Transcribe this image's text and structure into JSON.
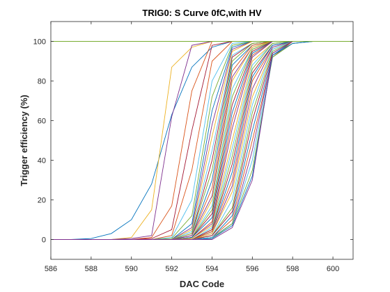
{
  "chart_data": {
    "type": "line",
    "title": "TRIG0: S Curve 0fC,with HV",
    "xlabel": "DAC Code",
    "ylabel": "Trigger efficiency (%)",
    "xlim": [
      586,
      601
    ],
    "ylim": [
      -10,
      110
    ],
    "xticks": [
      586,
      588,
      590,
      592,
      594,
      596,
      598,
      600
    ],
    "yticks": [
      0,
      20,
      40,
      60,
      80,
      100
    ],
    "grid": false,
    "legend": "none",
    "x": [
      586,
      587,
      588,
      589,
      590,
      591,
      592,
      593,
      594,
      595,
      596,
      597,
      598,
      599,
      600,
      601
    ],
    "series": [
      {
        "color": "#0072BD",
        "values": [
          0,
          0,
          0.5,
          3,
          10,
          28,
          63,
          87,
          97,
          100,
          100,
          100,
          100,
          100,
          100,
          100
        ]
      },
      {
        "color": "#EDB120",
        "values": [
          0,
          0,
          0,
          0,
          1,
          15,
          87,
          97,
          100,
          100,
          100,
          100,
          100,
          100,
          100,
          100
        ]
      },
      {
        "color": "#7E2F8E",
        "values": [
          0,
          0,
          0,
          0,
          0.5,
          2,
          62,
          98,
          100,
          100,
          100,
          100,
          100,
          100,
          100,
          100
        ]
      },
      {
        "color": "#D95319",
        "values": [
          0,
          0,
          0,
          0,
          0,
          1,
          17,
          75,
          100,
          100,
          100,
          100,
          100,
          100,
          100,
          100
        ]
      },
      {
        "color": "#A2142F",
        "values": [
          0,
          0,
          0,
          0,
          0,
          0.5,
          5,
          55,
          98,
          100,
          100,
          100,
          100,
          100,
          100,
          100
        ]
      },
      {
        "color": "#D95319",
        "values": [
          0,
          0,
          0,
          0,
          0,
          0,
          2,
          35,
          90,
          100,
          100,
          100,
          100,
          100,
          100,
          100
        ]
      },
      {
        "color": "#4DBEEE",
        "values": [
          0,
          0,
          0,
          0,
          0,
          0,
          1,
          20,
          80,
          99,
          100,
          100,
          100,
          100,
          100,
          100
        ]
      },
      {
        "color": "#77AC30",
        "values": [
          0,
          0,
          0,
          0,
          0,
          0,
          0.5,
          12,
          72,
          98,
          100,
          100,
          100,
          100,
          100,
          100
        ]
      },
      {
        "color": "#0072BD",
        "values": [
          0,
          0,
          0,
          0,
          0,
          0,
          0,
          8,
          65,
          97,
          100,
          100,
          100,
          100,
          100,
          100
        ]
      },
      {
        "color": "#7E2F8E",
        "values": [
          0,
          0,
          0,
          0,
          0,
          0,
          0,
          6,
          58,
          96,
          100,
          100,
          100,
          100,
          100,
          100
        ]
      },
      {
        "color": "#EDB120",
        "values": [
          0,
          0,
          0,
          0,
          0,
          0,
          0,
          5,
          52,
          95,
          100,
          100,
          100,
          100,
          100,
          100
        ]
      },
      {
        "color": "#4DBEEE",
        "values": [
          0,
          0,
          0,
          0,
          0,
          0,
          0,
          4,
          45,
          93,
          99,
          100,
          100,
          100,
          100,
          100
        ]
      },
      {
        "color": "#A2142F",
        "values": [
          0,
          0,
          0,
          0,
          0,
          0,
          0,
          3,
          40,
          92,
          99,
          100,
          100,
          100,
          100,
          100
        ]
      },
      {
        "color": "#77AC30",
        "values": [
          0,
          0,
          0,
          0,
          0,
          0,
          0,
          3,
          35,
          90,
          99,
          100,
          100,
          100,
          100,
          100
        ]
      },
      {
        "color": "#0072BD",
        "values": [
          0,
          0,
          0,
          0,
          0,
          0,
          0,
          2,
          30,
          88,
          98,
          100,
          100,
          100,
          100,
          100
        ]
      },
      {
        "color": "#D95319",
        "values": [
          0,
          0,
          0,
          0,
          0,
          0,
          0,
          2,
          26,
          85,
          98,
          100,
          100,
          100,
          100,
          100
        ]
      },
      {
        "color": "#7E2F8E",
        "values": [
          0,
          0,
          0,
          0,
          0,
          0,
          0,
          2,
          22,
          82,
          97,
          100,
          100,
          100,
          100,
          100
        ]
      },
      {
        "color": "#EDB120",
        "values": [
          0,
          0,
          0,
          0,
          0,
          0,
          0,
          1,
          20,
          80,
          97,
          100,
          100,
          100,
          100,
          100
        ]
      },
      {
        "color": "#4DBEEE",
        "values": [
          0,
          0,
          0,
          0,
          0,
          0,
          0,
          1,
          17,
          76,
          96,
          100,
          100,
          100,
          100,
          100
        ]
      },
      {
        "color": "#77AC30",
        "values": [
          0,
          0,
          0,
          0,
          0,
          0,
          0,
          1,
          15,
          72,
          96,
          100,
          100,
          100,
          100,
          100
        ]
      },
      {
        "color": "#A2142F",
        "values": [
          0,
          0,
          0,
          0,
          0,
          0,
          0,
          1,
          13,
          68,
          95,
          100,
          100,
          100,
          100,
          100
        ]
      },
      {
        "color": "#0072BD",
        "values": [
          0,
          0,
          0,
          0,
          0,
          0,
          0,
          1,
          11,
          64,
          94,
          100,
          100,
          100,
          100,
          100
        ]
      },
      {
        "color": "#D95319",
        "values": [
          0,
          0,
          0,
          0,
          0,
          0,
          0,
          0.5,
          9,
          60,
          93,
          100,
          100,
          100,
          100,
          100
        ]
      },
      {
        "color": "#7E2F8E",
        "values": [
          0,
          0,
          0,
          0,
          0,
          0,
          0,
          0.5,
          8,
          56,
          92,
          100,
          100,
          100,
          100,
          100
        ]
      },
      {
        "color": "#EDB120",
        "values": [
          0,
          0,
          0,
          0,
          0,
          0,
          0,
          0.5,
          7,
          50,
          90,
          99,
          100,
          100,
          100,
          100
        ]
      },
      {
        "color": "#4DBEEE",
        "values": [
          0,
          0,
          0,
          0,
          0,
          0,
          0,
          0,
          6,
          46,
          88,
          99,
          100,
          100,
          100,
          100
        ]
      },
      {
        "color": "#77AC30",
        "values": [
          0,
          0,
          0,
          0,
          0,
          0,
          0,
          0,
          5,
          42,
          86,
          99,
          100,
          100,
          100,
          100
        ]
      },
      {
        "color": "#A2142F",
        "values": [
          0,
          0,
          0,
          0,
          0,
          0,
          0,
          0,
          5,
          38,
          84,
          98,
          100,
          100,
          100,
          100
        ]
      },
      {
        "color": "#0072BD",
        "values": [
          0,
          0,
          0,
          0,
          0,
          0,
          0,
          0,
          4,
          34,
          82,
          98,
          100,
          100,
          100,
          100
        ]
      },
      {
        "color": "#D95319",
        "values": [
          0,
          0,
          0,
          0,
          0,
          0,
          0,
          0,
          4,
          30,
          80,
          97,
          100,
          100,
          100,
          100
        ]
      },
      {
        "color": "#7E2F8E",
        "values": [
          0,
          0,
          0,
          0,
          0,
          0,
          0,
          0,
          3,
          27,
          76,
          97,
          100,
          100,
          100,
          100
        ]
      },
      {
        "color": "#EDB120",
        "values": [
          0,
          0,
          0,
          0,
          0,
          0,
          0,
          0,
          3,
          24,
          72,
          96,
          100,
          100,
          100,
          100
        ]
      },
      {
        "color": "#4DBEEE",
        "values": [
          0,
          0,
          0,
          0,
          0,
          0,
          0,
          0,
          2,
          20,
          68,
          96,
          100,
          100,
          100,
          100
        ]
      },
      {
        "color": "#77AC30",
        "values": [
          0,
          0,
          0,
          0,
          0,
          0,
          0,
          0,
          2,
          16,
          64,
          95,
          100,
          100,
          100,
          100
        ]
      },
      {
        "color": "#A2142F",
        "values": [
          0,
          0,
          0,
          0,
          0,
          0,
          0,
          0,
          2,
          14,
          60,
          94,
          100,
          100,
          100,
          100
        ]
      },
      {
        "color": "#0072BD",
        "values": [
          0,
          0,
          0,
          0,
          0,
          0,
          0,
          0,
          1,
          12,
          55,
          93,
          100,
          100,
          100,
          100
        ]
      },
      {
        "color": "#D95319",
        "values": [
          0,
          0,
          0,
          0,
          0,
          0,
          0,
          0,
          1,
          10,
          50,
          92,
          100,
          100,
          100,
          100
        ]
      },
      {
        "color": "#7E2F8E",
        "values": [
          0,
          0,
          0,
          0,
          0,
          0,
          0,
          0,
          1,
          8,
          45,
          93,
          99,
          100,
          100,
          100
        ]
      },
      {
        "color": "#4DBEEE",
        "values": [
          0,
          0,
          0,
          0,
          0,
          0,
          0,
          0,
          1,
          8,
          40,
          92,
          99,
          100,
          100,
          100
        ]
      },
      {
        "color": "#77AC30",
        "values": [
          0,
          0,
          0,
          0,
          0,
          0,
          0,
          0,
          0.5,
          8,
          35,
          92,
          99,
          100,
          100,
          100
        ]
      },
      {
        "color": "#0072BD",
        "values": [
          0,
          0,
          0,
          0,
          0,
          0,
          0,
          0,
          0.5,
          7,
          32,
          93,
          99,
          100,
          100,
          100
        ]
      },
      {
        "color": "#7E2F8E",
        "values": [
          0,
          0,
          0,
          0,
          0,
          0,
          0,
          0,
          0,
          6,
          30,
          94,
          100,
          100,
          100,
          100
        ]
      },
      {
        "color": "#77AC30",
        "values": [
          100,
          100,
          100,
          100,
          100,
          100,
          100,
          100,
          100,
          100,
          100,
          100,
          100,
          100,
          100,
          100
        ]
      }
    ]
  }
}
